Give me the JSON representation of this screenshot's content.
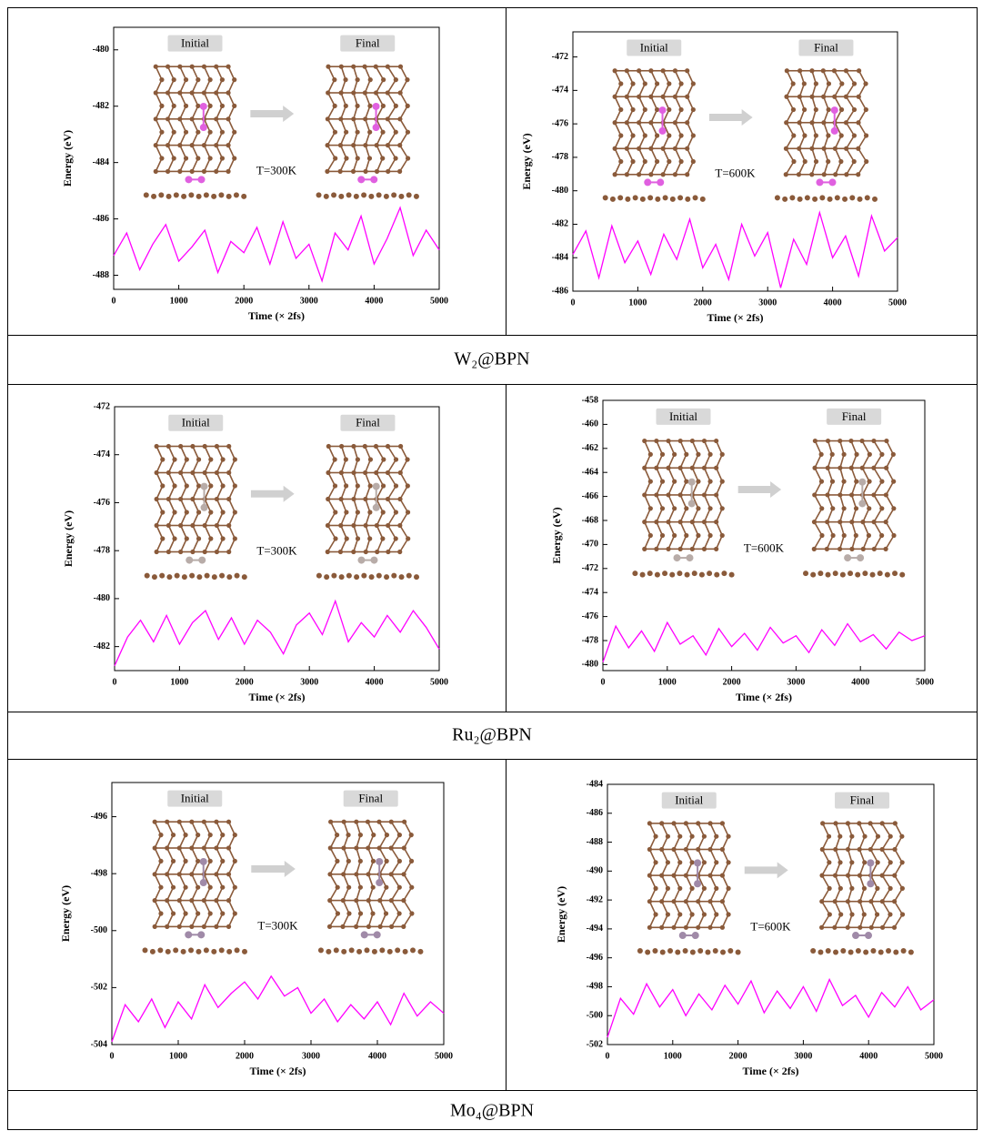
{
  "chart_data": [
    {
      "type": "line",
      "ylabel": "Energy (eV)",
      "xlabel": "Time (× 2fs)",
      "initial": "Initial",
      "final": "Final",
      "temperature": "T=300K",
      "xlim": [
        0,
        5000
      ],
      "xticks": [
        0,
        1000,
        2000,
        3000,
        4000,
        5000
      ],
      "ylim": [
        -488.5,
        -479.2
      ],
      "yticks": [
        -488,
        -486,
        -484,
        -482,
        -480
      ],
      "x": [
        0,
        200,
        400,
        600,
        800,
        1000,
        1200,
        1400,
        1600,
        1800,
        2000,
        2200,
        2400,
        2600,
        2800,
        3000,
        3200,
        3400,
        3600,
        3800,
        4000,
        4200,
        4400,
        4600,
        4800,
        5000
      ],
      "series": [
        {
          "color": "#ff00ff",
          "values": [
            -487.3,
            -486.5,
            -487.8,
            -486.9,
            -486.2,
            -487.5,
            -487.0,
            -486.4,
            -487.9,
            -486.8,
            -487.2,
            -486.3,
            -487.6,
            -486.1,
            -487.4,
            -486.9,
            -488.2,
            -486.5,
            -487.1,
            -485.9,
            -487.6,
            -486.7,
            -485.6,
            -487.3,
            -486.4,
            -487.1
          ]
        }
      ]
    },
    {
      "type": "line",
      "ylabel": "Energy (eV)",
      "xlabel": "Time (× 2fs)",
      "initial": "Initial",
      "final": "Final",
      "temperature": "T=600K",
      "xlim": [
        0,
        5000
      ],
      "xticks": [
        0,
        1000,
        2000,
        3000,
        4000,
        5000
      ],
      "ylim": [
        -486,
        -470.5
      ],
      "yticks": [
        -486,
        -484,
        -482,
        -480,
        -478,
        -476,
        -474,
        -472
      ],
      "x": [
        0,
        200,
        400,
        600,
        800,
        1000,
        1200,
        1400,
        1600,
        1800,
        2000,
        2200,
        2400,
        2600,
        2800,
        3000,
        3200,
        3400,
        3600,
        3800,
        4000,
        4200,
        4400,
        4600,
        4800,
        5000
      ],
      "series": [
        {
          "color": "#ff00ff",
          "values": [
            -483.8,
            -482.4,
            -485.2,
            -482.1,
            -484.3,
            -483.0,
            -485.0,
            -482.6,
            -484.1,
            -481.7,
            -484.6,
            -483.2,
            -485.3,
            -482.0,
            -483.9,
            -482.5,
            -485.8,
            -482.9,
            -484.4,
            -481.3,
            -484.0,
            -482.7,
            -485.1,
            -481.5,
            -483.6,
            -482.8
          ]
        }
      ]
    },
    {
      "type": "line",
      "ylabel": "Energy (eV)",
      "xlabel": "Time (× 2fs)",
      "initial": "Initial",
      "final": "Final",
      "temperature": "T=300K",
      "xlim": [
        0,
        5000
      ],
      "xticks": [
        0,
        1000,
        2000,
        3000,
        4000,
        5000
      ],
      "ylim": [
        -483,
        -472
      ],
      "yticks": [
        -482,
        -480,
        -478,
        -476,
        -474,
        -472
      ],
      "x": [
        0,
        200,
        400,
        600,
        800,
        1000,
        1200,
        1400,
        1600,
        1800,
        2000,
        2200,
        2400,
        2600,
        2800,
        3000,
        3200,
        3400,
        3600,
        3800,
        4000,
        4200,
        4400,
        4600,
        4800,
        5000
      ],
      "series": [
        {
          "color": "#ff00ff",
          "values": [
            -482.8,
            -481.6,
            -480.9,
            -481.8,
            -480.7,
            -481.9,
            -481.0,
            -480.5,
            -481.7,
            -480.8,
            -481.9,
            -480.9,
            -481.4,
            -482.3,
            -481.1,
            -480.6,
            -481.5,
            -480.1,
            -481.8,
            -481.0,
            -481.6,
            -480.7,
            -481.4,
            -480.5,
            -481.2,
            -482.1
          ]
        }
      ]
    },
    {
      "type": "line",
      "ylabel": "Energy (eV)",
      "xlabel": "Time (× 2fs)",
      "initial": "Initial",
      "final": "Final",
      "temperature": "T=600K",
      "xlim": [
        0,
        5000
      ],
      "xticks": [
        0,
        1000,
        2000,
        3000,
        4000,
        5000
      ],
      "ylim": [
        -480.5,
        -458
      ],
      "yticks": [
        -480,
        -478,
        -476,
        -474,
        -472,
        -470,
        -468,
        -466,
        -464,
        -462,
        -460,
        -458
      ],
      "x": [
        0,
        200,
        400,
        600,
        800,
        1000,
        1200,
        1400,
        1600,
        1800,
        2000,
        2200,
        2400,
        2600,
        2800,
        3000,
        3200,
        3400,
        3600,
        3800,
        4000,
        4200,
        4400,
        4600,
        4800,
        5000
      ],
      "series": [
        {
          "color": "#ff00ff",
          "values": [
            -479.8,
            -476.8,
            -478.6,
            -477.2,
            -478.9,
            -476.5,
            -478.3,
            -477.6,
            -479.2,
            -477.0,
            -478.5,
            -477.4,
            -478.8,
            -476.9,
            -478.2,
            -477.6,
            -479.0,
            -477.1,
            -478.4,
            -476.6,
            -478.1,
            -477.5,
            -478.7,
            -477.3,
            -478.0,
            -477.6
          ]
        }
      ]
    },
    {
      "type": "line",
      "ylabel": "Energy (eV)",
      "xlabel": "Time (× 2fs)",
      "initial": "Initial",
      "final": "Final",
      "temperature": "T=300K",
      "xlim": [
        0,
        5000
      ],
      "xticks": [
        0,
        1000,
        2000,
        3000,
        4000,
        5000
      ],
      "ylim": [
        -504,
        -494.8
      ],
      "yticks": [
        -504,
        -502,
        -500,
        -498,
        -496
      ],
      "x": [
        0,
        200,
        400,
        600,
        800,
        1000,
        1200,
        1400,
        1600,
        1800,
        2000,
        2200,
        2400,
        2600,
        2800,
        3000,
        3200,
        3400,
        3600,
        3800,
        4000,
        4200,
        4400,
        4600,
        4800,
        5000
      ],
      "series": [
        {
          "color": "#ff00ff",
          "values": [
            -503.9,
            -502.6,
            -503.2,
            -502.4,
            -503.4,
            -502.5,
            -503.1,
            -501.9,
            -502.7,
            -502.2,
            -501.8,
            -502.4,
            -501.6,
            -502.3,
            -502.0,
            -502.9,
            -502.4,
            -503.2,
            -502.6,
            -503.1,
            -502.5,
            -503.3,
            -502.2,
            -503.0,
            -502.5,
            -502.9
          ]
        }
      ]
    },
    {
      "type": "line",
      "ylabel": "Energy (eV)",
      "xlabel": "Time (× 2fs)",
      "initial": "Initial",
      "final": "Final",
      "temperature": "T=600K",
      "xlim": [
        0,
        5000
      ],
      "xticks": [
        0,
        1000,
        2000,
        3000,
        4000,
        5000
      ],
      "ylim": [
        -502,
        -484
      ],
      "yticks": [
        -502,
        -500,
        -498,
        -496,
        -494,
        -492,
        -490,
        -488,
        -486,
        -484
      ],
      "x": [
        0,
        200,
        400,
        600,
        800,
        1000,
        1200,
        1400,
        1600,
        1800,
        2000,
        2200,
        2400,
        2600,
        2800,
        3000,
        3200,
        3400,
        3600,
        3800,
        4000,
        4200,
        4400,
        4600,
        4800,
        5000
      ],
      "series": [
        {
          "color": "#ff00ff",
          "values": [
            -501.5,
            -498.8,
            -499.9,
            -497.8,
            -499.4,
            -498.2,
            -500.0,
            -498.5,
            -499.6,
            -497.9,
            -499.2,
            -497.6,
            -499.8,
            -498.3,
            -499.5,
            -498.0,
            -499.7,
            -497.5,
            -499.3,
            -498.6,
            -500.1,
            -498.4,
            -499.4,
            -498.0,
            -499.6,
            -498.9
          ]
        }
      ]
    }
  ],
  "captions": [
    "W₂@BPN",
    "Ru₂@BPN",
    "Mo₄@BPN"
  ]
}
